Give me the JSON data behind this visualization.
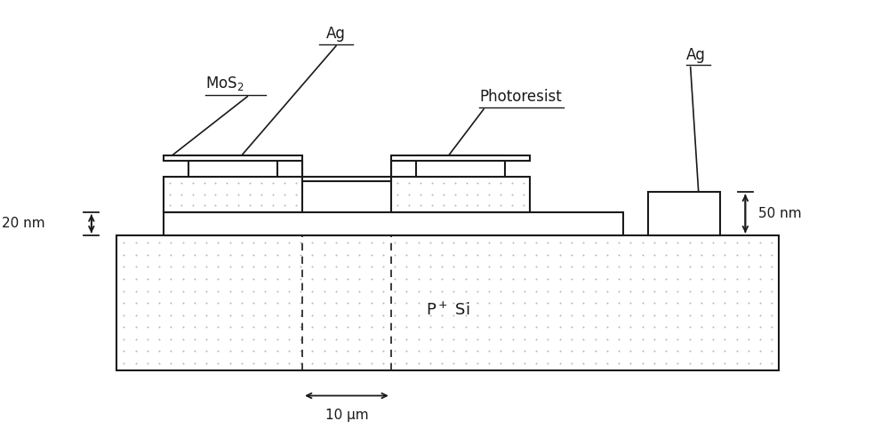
{
  "fig_width": 10.0,
  "fig_height": 4.83,
  "dpi": 100,
  "bg_color": "#ffffff",
  "lw": 1.5,
  "edge_color": "#1a1a1a",
  "labels": {
    "Ag_top": "Ag",
    "MoS2": "MoS$_2$",
    "Photoresist": "Photoresist",
    "Ag_right": "Ag",
    "PSi": "P$^+$ Si",
    "dim_left": "20 nm",
    "dim_right": "50 nm",
    "dim_bottom": "10 μm"
  },
  "xlim": [
    0,
    10
  ],
  "ylim": [
    0,
    5
  ]
}
